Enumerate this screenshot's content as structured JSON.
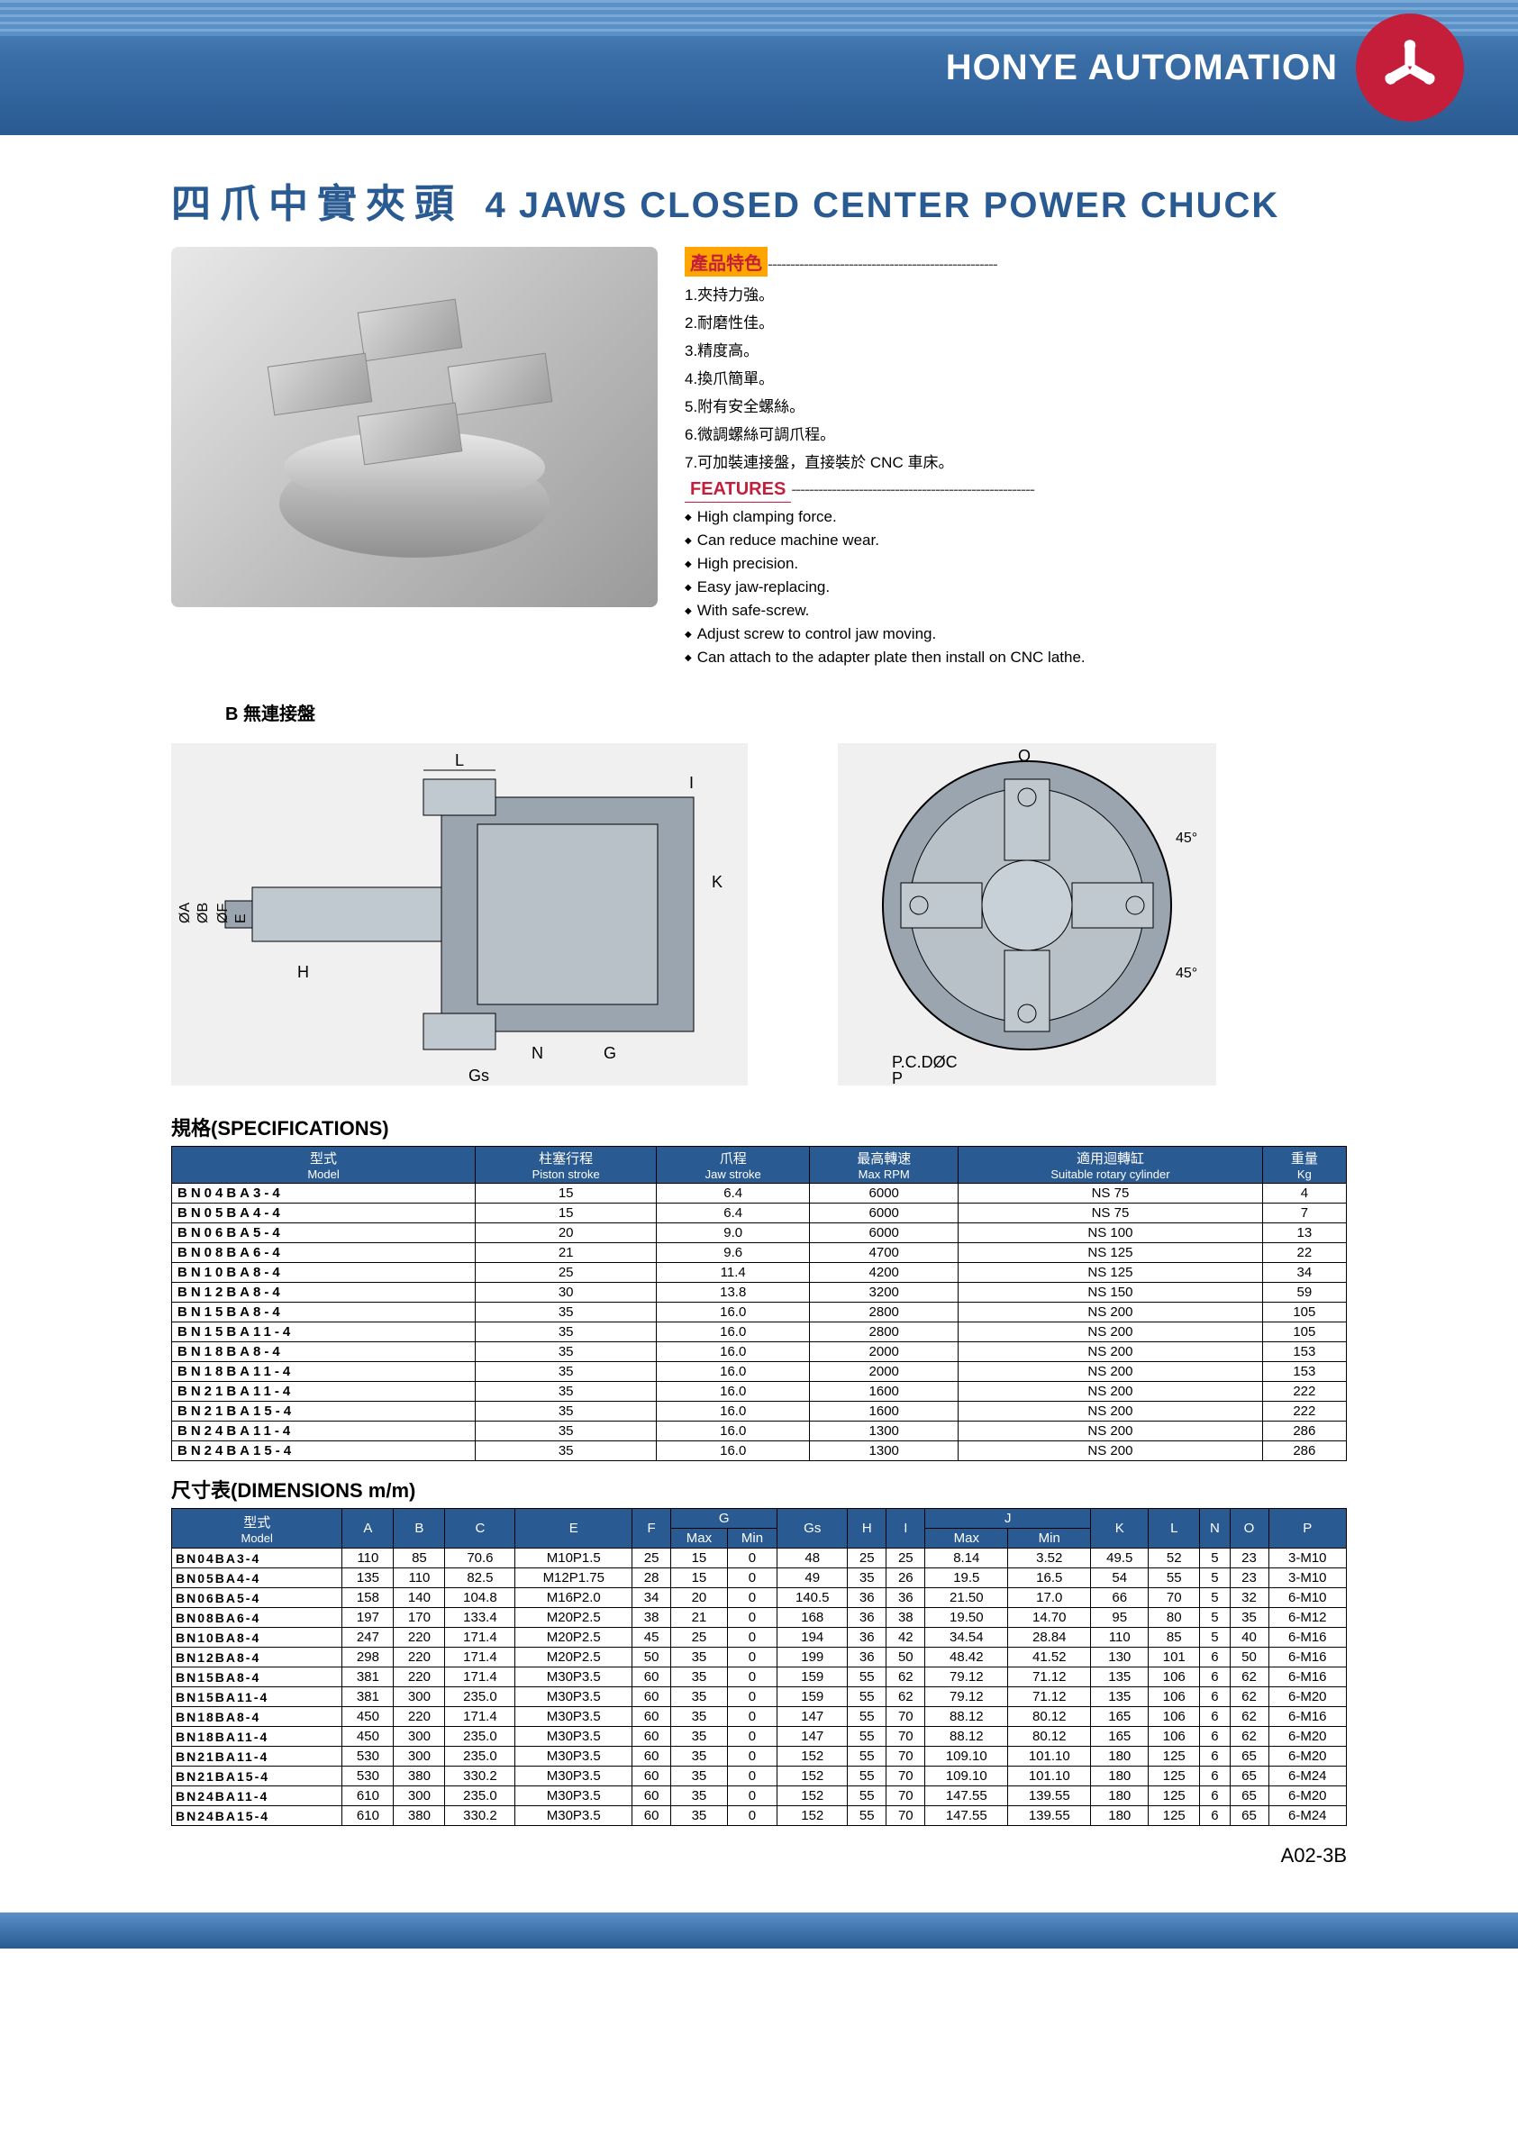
{
  "header": {
    "brand": "HONYE AUTOMATION"
  },
  "title": {
    "cn": "四爪中實夾頭",
    "en": "4 JAWS CLOSED CENTER POWER CHUCK"
  },
  "features_cn": {
    "label": "產品特色",
    "items": [
      "1.夾持力強。",
      "2.耐磨性佳。",
      "3.精度高。",
      "4.換爪簡單。",
      "5.附有安全螺絲。",
      "6.微調螺絲可調爪程。",
      "7.可加裝連接盤，直接裝於 CNC 車床。"
    ]
  },
  "features_en": {
    "label": "FEATURES",
    "items": [
      "High clamping force.",
      "Can reduce machine wear.",
      "High precision.",
      "Easy jaw-replacing.",
      "With safe-screw.",
      "Adjust screw to control jaw moving.",
      "Can attach to the adapter plate then install on CNC lathe."
    ]
  },
  "diagram_label": "B 無連接盤",
  "spec": {
    "title": "規格(SPECIFICATIONS)",
    "headers": [
      {
        "cn": "型式",
        "en": "Model"
      },
      {
        "cn": "柱塞行程",
        "en": "Piston stroke"
      },
      {
        "cn": "爪程",
        "en": "Jaw stroke"
      },
      {
        "cn": "最高轉速",
        "en": "Max RPM"
      },
      {
        "cn": "適用迴轉缸",
        "en": "Suitable rotary cylinder"
      },
      {
        "cn": "重量",
        "en": "Kg"
      }
    ],
    "rows": [
      [
        "BN04BA3-4",
        "15",
        "6.4",
        "6000",
        "NS 75",
        "4"
      ],
      [
        "BN05BA4-4",
        "15",
        "6.4",
        "6000",
        "NS 75",
        "7"
      ],
      [
        "BN06BA5-4",
        "20",
        "9.0",
        "6000",
        "NS 100",
        "13"
      ],
      [
        "BN08BA6-4",
        "21",
        "9.6",
        "4700",
        "NS 125",
        "22"
      ],
      [
        "BN10BA8-4",
        "25",
        "11.4",
        "4200",
        "NS 125",
        "34"
      ],
      [
        "BN12BA8-4",
        "30",
        "13.8",
        "3200",
        "NS 150",
        "59"
      ],
      [
        "BN15BA8-4",
        "35",
        "16.0",
        "2800",
        "NS 200",
        "105"
      ],
      [
        "BN15BA11-4",
        "35",
        "16.0",
        "2800",
        "NS 200",
        "105"
      ],
      [
        "BN18BA8-4",
        "35",
        "16.0",
        "2000",
        "NS 200",
        "153"
      ],
      [
        "BN18BA11-4",
        "35",
        "16.0",
        "2000",
        "NS 200",
        "153"
      ],
      [
        "BN21BA11-4",
        "35",
        "16.0",
        "1600",
        "NS 200",
        "222"
      ],
      [
        "BN21BA15-4",
        "35",
        "16.0",
        "1600",
        "NS 200",
        "222"
      ],
      [
        "BN24BA11-4",
        "35",
        "16.0",
        "1300",
        "NS 200",
        "286"
      ],
      [
        "BN24BA15-4",
        "35",
        "16.0",
        "1300",
        "NS 200",
        "286"
      ]
    ]
  },
  "dim": {
    "title": "尺寸表(DIMENSIONS m/m)",
    "rows": [
      [
        "BN04BA3-4",
        "110",
        "85",
        "70.6",
        "M10P1.5",
        "25",
        "15",
        "0",
        "48",
        "25",
        "25",
        "8.14",
        "3.52",
        "49.5",
        "52",
        "5",
        "23",
        "3-M10"
      ],
      [
        "BN05BA4-4",
        "135",
        "110",
        "82.5",
        "M12P1.75",
        "28",
        "15",
        "0",
        "49",
        "35",
        "26",
        "19.5",
        "16.5",
        "54",
        "55",
        "5",
        "23",
        "3-M10"
      ],
      [
        "BN06BA5-4",
        "158",
        "140",
        "104.8",
        "M16P2.0",
        "34",
        "20",
        "0",
        "140.5",
        "36",
        "36",
        "21.50",
        "17.0",
        "66",
        "70",
        "5",
        "32",
        "6-M10"
      ],
      [
        "BN08BA6-4",
        "197",
        "170",
        "133.4",
        "M20P2.5",
        "38",
        "21",
        "0",
        "168",
        "36",
        "38",
        "19.50",
        "14.70",
        "95",
        "80",
        "5",
        "35",
        "6-M12"
      ],
      [
        "BN10BA8-4",
        "247",
        "220",
        "171.4",
        "M20P2.5",
        "45",
        "25",
        "0",
        "194",
        "36",
        "42",
        "34.54",
        "28.84",
        "110",
        "85",
        "5",
        "40",
        "6-M16"
      ],
      [
        "BN12BA8-4",
        "298",
        "220",
        "171.4",
        "M20P2.5",
        "50",
        "35",
        "0",
        "199",
        "36",
        "50",
        "48.42",
        "41.52",
        "130",
        "101",
        "6",
        "50",
        "6-M16"
      ],
      [
        "BN15BA8-4",
        "381",
        "220",
        "171.4",
        "M30P3.5",
        "60",
        "35",
        "0",
        "159",
        "55",
        "62",
        "79.12",
        "71.12",
        "135",
        "106",
        "6",
        "62",
        "6-M16"
      ],
      [
        "BN15BA11-4",
        "381",
        "300",
        "235.0",
        "M30P3.5",
        "60",
        "35",
        "0",
        "159",
        "55",
        "62",
        "79.12",
        "71.12",
        "135",
        "106",
        "6",
        "62",
        "6-M20"
      ],
      [
        "BN18BA8-4",
        "450",
        "220",
        "171.4",
        "M30P3.5",
        "60",
        "35",
        "0",
        "147",
        "55",
        "70",
        "88.12",
        "80.12",
        "165",
        "106",
        "6",
        "62",
        "6-M16"
      ],
      [
        "BN18BA11-4",
        "450",
        "300",
        "235.0",
        "M30P3.5",
        "60",
        "35",
        "0",
        "147",
        "55",
        "70",
        "88.12",
        "80.12",
        "165",
        "106",
        "6",
        "62",
        "6-M20"
      ],
      [
        "BN21BA11-4",
        "530",
        "300",
        "235.0",
        "M30P3.5",
        "60",
        "35",
        "0",
        "152",
        "55",
        "70",
        "109.10",
        "101.10",
        "180",
        "125",
        "6",
        "65",
        "6-M20"
      ],
      [
        "BN21BA15-4",
        "530",
        "380",
        "330.2",
        "M30P3.5",
        "60",
        "35",
        "0",
        "152",
        "55",
        "70",
        "109.10",
        "101.10",
        "180",
        "125",
        "6",
        "65",
        "6-M24"
      ],
      [
        "BN24BA11-4",
        "610",
        "300",
        "235.0",
        "M30P3.5",
        "60",
        "35",
        "0",
        "152",
        "55",
        "70",
        "147.55",
        "139.55",
        "180",
        "125",
        "6",
        "65",
        "6-M20"
      ],
      [
        "BN24BA15-4",
        "610",
        "380",
        "330.2",
        "M30P3.5",
        "60",
        "35",
        "0",
        "152",
        "55",
        "70",
        "147.55",
        "139.55",
        "180",
        "125",
        "6",
        "65",
        "6-M24"
      ]
    ]
  },
  "page_num": "A02-3B"
}
